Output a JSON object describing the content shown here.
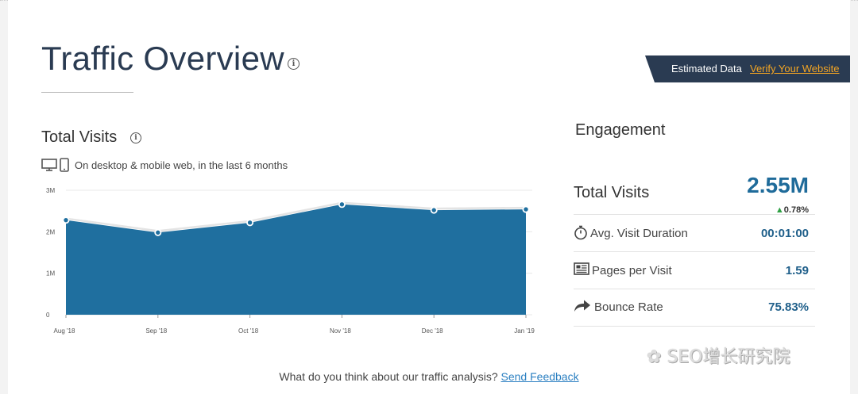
{
  "header": {
    "title": "Traffic Overview"
  },
  "banner": {
    "text": "Estimated Data",
    "link": "Verify Your Website"
  },
  "total_visits_panel": {
    "title": "Total Visits",
    "subtitle": "On desktop & mobile web, in the last 6 months"
  },
  "chart_data": {
    "type": "area",
    "x": [
      "Aug '18",
      "Sep '18",
      "Oct '18",
      "Nov '18",
      "Dec '18",
      "Jan '19"
    ],
    "series": [
      {
        "values": [
          2.28,
          1.98,
          2.22,
          2.66,
          2.52,
          2.54
        ]
      }
    ],
    "ylabel": "",
    "yticks": [
      "0",
      "1M",
      "2M",
      "3M"
    ],
    "ylim": [
      0,
      3
    ],
    "grid": true,
    "color": "#1f6f9f"
  },
  "engagement": {
    "title": "Engagement",
    "total_visits": {
      "label": "Total Visits",
      "value": "2.55M",
      "delta": "0.78%"
    },
    "metrics": [
      {
        "label": "Avg. Visit Duration",
        "value": "00:01:00",
        "icon": "stopwatch-icon"
      },
      {
        "label": "Pages per Visit",
        "value": "1.59",
        "icon": "pages-icon"
      },
      {
        "label": "Bounce Rate",
        "value": "75.83%",
        "icon": "bounce-arrow-icon"
      }
    ]
  },
  "feedback": {
    "question": "What do you think about our traffic analysis?",
    "link": "Send Feedback"
  },
  "watermark": {
    "text": "SEO增长研究院"
  },
  "colors": {
    "accent": "#1f6f9f",
    "banner": "#2a3b52",
    "link_orange": "#f5a623",
    "up_green": "#2ea043"
  }
}
